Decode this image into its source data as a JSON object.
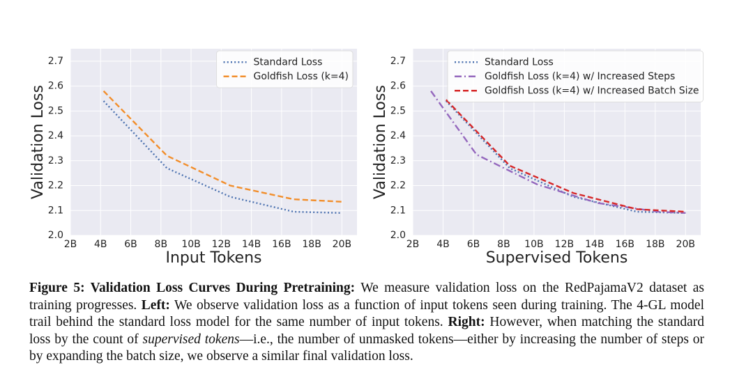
{
  "chart_data": [
    {
      "type": "line",
      "xlabel": "Input Tokens",
      "ylabel": "Validation Loss",
      "xlim": [
        2,
        21
      ],
      "ylim": [
        2.0,
        2.75
      ],
      "xticks": [
        {
          "value": 2,
          "label": "2B"
        },
        {
          "value": 4,
          "label": "4B"
        },
        {
          "value": 6,
          "label": "6B"
        },
        {
          "value": 8,
          "label": "8B"
        },
        {
          "value": 10,
          "label": "10B"
        },
        {
          "value": 12,
          "label": "12B"
        },
        {
          "value": 14,
          "label": "14B"
        },
        {
          "value": 16,
          "label": "16B"
        },
        {
          "value": 18,
          "label": "18B"
        },
        {
          "value": 20,
          "label": "20B"
        }
      ],
      "yticks": [
        {
          "value": 2.0,
          "label": "2.0"
        },
        2.1,
        2.2,
        2.3,
        2.4,
        2.5,
        2.6,
        2.7
      ],
      "grid": true,
      "legend": "upper right",
      "series": [
        {
          "name": "Standard Loss",
          "color": "#4c72b0",
          "dash": "dotted",
          "x": [
            4.2,
            8.4,
            12.6,
            16.8,
            20
          ],
          "values": [
            2.54,
            2.27,
            2.155,
            2.095,
            2.09
          ]
        },
        {
          "name": "Goldfish Loss (k=4)",
          "color": "#f28e2b",
          "dash": "dashed",
          "x": [
            4.2,
            8.4,
            12.6,
            16.8,
            20
          ],
          "values": [
            2.58,
            2.32,
            2.2,
            2.145,
            2.135
          ]
        }
      ]
    },
    {
      "type": "line",
      "xlabel": "Supervised Tokens",
      "ylabel": "Validation Loss",
      "xlim": [
        2,
        21
      ],
      "ylim": [
        2.0,
        2.75
      ],
      "xticks": [
        {
          "value": 2,
          "label": "2B"
        },
        {
          "value": 4,
          "label": "4B"
        },
        {
          "value": 6,
          "label": "6B"
        },
        {
          "value": 8,
          "label": "8B"
        },
        {
          "value": 10,
          "label": "10B"
        },
        {
          "value": 12,
          "label": "12B"
        },
        {
          "value": 14,
          "label": "14B"
        },
        {
          "value": 16,
          "label": "16B"
        },
        {
          "value": 18,
          "label": "18B"
        },
        {
          "value": 20,
          "label": "20B"
        }
      ],
      "yticks": [
        {
          "value": 2.0,
          "label": "2.0"
        },
        2.1,
        2.2,
        2.3,
        2.4,
        2.5,
        2.6,
        2.7
      ],
      "grid": true,
      "legend": "upper left",
      "series": [
        {
          "name": "Standard Loss",
          "color": "#4c72b0",
          "dash": "dotted",
          "x": [
            4.2,
            8.4,
            12.6,
            16.8,
            20
          ],
          "values": [
            2.54,
            2.27,
            2.155,
            2.095,
            2.09
          ]
        },
        {
          "name": "Goldfish Loss (k=4) w/ Increased Steps",
          "color": "#9467bd",
          "dash": "dashdot",
          "x": [
            3.2,
            6.2,
            10.2,
            14.2,
            18.2,
            20
          ],
          "values": [
            2.58,
            2.325,
            2.205,
            2.13,
            2.095,
            2.09
          ]
        },
        {
          "name": "Goldfish Loss (k=4) w/ Increased Batch Size",
          "color": "#d62728",
          "dash": "dashed",
          "x": [
            4.2,
            8.4,
            12.6,
            16.8,
            20
          ],
          "values": [
            2.545,
            2.28,
            2.17,
            2.105,
            2.095
          ]
        }
      ]
    }
  ],
  "caption": [
    {
      "text": "Figure 5: Validation Loss Curves During Pretraining:",
      "bold": true
    },
    {
      "text": " We measure validation loss on the RedPajamaV2 dataset as training progresses. "
    },
    {
      "text": "Left:",
      "bold": true
    },
    {
      "text": " We observe validation loss as a function of input tokens seen during training. The 4-GL model trail behind the standard loss model for the same number of input tokens. "
    },
    {
      "text": "Right:",
      "bold": true
    },
    {
      "text": " However, when matching the standard loss by the count of "
    },
    {
      "text": "supervised tokens",
      "italic": true
    },
    {
      "text": "—i.e., the number of unmasked tokens—either by increasing the number of steps or by expanding the batch size, we observe a similar final validation loss."
    }
  ]
}
